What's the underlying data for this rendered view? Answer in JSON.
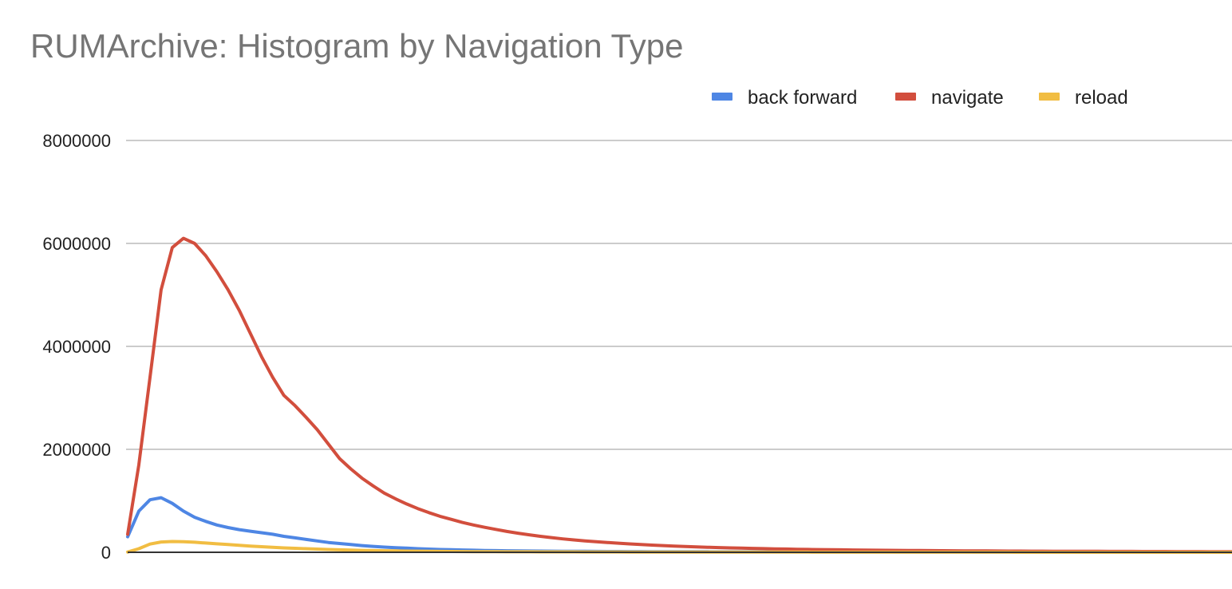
{
  "chart_data": {
    "type": "line",
    "title": "RUMArchive: Histogram by Navigation Type",
    "xlabel": "",
    "ylabel": "",
    "ylim": [
      0,
      8000000
    ],
    "yticks": [
      0,
      2000000,
      4000000,
      6000000,
      8000000
    ],
    "ytick_labels": [
      "0",
      "2000000",
      "4000000",
      "6000000",
      "8000000"
    ],
    "grid": true,
    "legend_position": "top-right",
    "colors": {
      "back forward": "#4e86e4",
      "navigate": "#d24e3d",
      "reload": "#f1bd42"
    },
    "x": [
      1,
      2,
      3,
      4,
      5,
      6,
      7,
      8,
      9,
      10,
      11,
      12,
      13,
      14,
      15,
      16,
      17,
      18,
      19,
      20,
      21,
      22,
      23,
      24,
      25,
      26,
      27,
      28,
      29,
      30,
      31,
      32,
      33,
      34,
      35,
      36,
      37,
      38,
      39,
      40,
      41,
      42,
      43,
      44,
      45,
      46,
      47,
      48,
      49,
      50,
      51,
      52,
      53,
      54,
      55,
      56,
      57,
      58,
      59,
      60,
      61,
      62,
      63,
      64,
      65,
      66,
      67,
      68,
      69,
      70,
      71,
      72,
      73,
      74,
      75,
      76,
      77,
      78,
      79,
      80,
      81,
      82,
      83,
      84,
      85,
      86,
      87,
      88,
      89,
      90,
      91,
      92,
      93,
      94,
      95,
      96,
      97,
      98,
      99,
      100
    ],
    "series": [
      {
        "name": "back forward",
        "values": [
          300000,
          800000,
          1020000,
          1060000,
          950000,
          800000,
          680000,
          600000,
          530000,
          480000,
          440000,
          410000,
          380000,
          350000,
          310000,
          280000,
          250000,
          220000,
          190000,
          170000,
          150000,
          130000,
          115000,
          100000,
          90000,
          80000,
          70000,
          62000,
          55000,
          50000,
          45000,
          40000,
          36000,
          33000,
          30000,
          27000,
          25000,
          23000,
          21000,
          20000,
          19000,
          18000,
          17000,
          16000,
          15000,
          14000,
          13500,
          13000,
          12500,
          12000,
          11500,
          11000,
          10500,
          10000,
          9800,
          9600,
          9400,
          9200,
          9000,
          8800,
          8600,
          8400,
          8200,
          8000,
          7800,
          7600,
          7400,
          7200,
          7000,
          6800,
          6600,
          6400,
          6200,
          6000,
          5800,
          5600,
          5400,
          5200,
          5000,
          4800,
          4600,
          4400,
          4200,
          4000,
          3800,
          3600,
          3400,
          3200,
          3000,
          2800,
          2600,
          2400,
          2200,
          2000,
          1800,
          1600,
          1400,
          1200,
          1000,
          800
        ]
      },
      {
        "name": "navigate",
        "values": [
          350000,
          1700000,
          3400000,
          5100000,
          5920000,
          6100000,
          6000000,
          5760000,
          5450000,
          5100000,
          4700000,
          4250000,
          3800000,
          3400000,
          3050000,
          2850000,
          2620000,
          2380000,
          2100000,
          1820000,
          1620000,
          1440000,
          1290000,
          1150000,
          1040000,
          940000,
          850000,
          770000,
          700000,
          640000,
          580000,
          530000,
          485000,
          445000,
          405000,
          370000,
          340000,
          310000,
          285000,
          260000,
          240000,
          222000,
          205000,
          190000,
          176000,
          163000,
          151000,
          140000,
          130000,
          121000,
          113000,
          105000,
          98000,
          92000,
          86000,
          81000,
          76000,
          71000,
          67000,
          63000,
          59000,
          56000,
          53000,
          50000,
          47500,
          45000,
          43000,
          41000,
          39000,
          37000,
          35500,
          34000,
          32500,
          31000,
          29500,
          28000,
          27000,
          26000,
          25000,
          24000,
          23000,
          22000,
          21000,
          20000,
          19500,
          19000,
          18500,
          18000,
          17500,
          17000,
          16500,
          16000,
          15500,
          15000,
          14500,
          14000,
          13500,
          13000,
          12500,
          12000
        ]
      },
      {
        "name": "reload",
        "values": [
          5000,
          70000,
          160000,
          200000,
          210000,
          205000,
          195000,
          180000,
          165000,
          150000,
          135000,
          120000,
          108000,
          96000,
          86000,
          78000,
          70000,
          62000,
          55000,
          48000,
          42000,
          37000,
          33000,
          29000,
          26000,
          23000,
          21000,
          19000,
          17000,
          15500,
          14000,
          13000,
          12000,
          11000,
          10000,
          9500,
          9000,
          8500,
          8000,
          7500,
          7000,
          6600,
          6200,
          5800,
          5500,
          5200,
          4900,
          4600,
          4400,
          4200,
          4000,
          3800,
          3600,
          3400,
          3200,
          3000,
          2900,
          2800,
          2700,
          2600,
          2500,
          2400,
          2300,
          2200,
          2100,
          2000,
          1900,
          1800,
          1700,
          1600,
          1500,
          1400,
          1300,
          1200,
          1100,
          1000,
          950,
          900,
          850,
          800,
          750,
          700,
          650,
          600,
          550,
          500,
          450,
          400,
          350,
          300,
          280,
          260,
          240,
          220,
          200,
          180,
          160,
          140,
          120,
          100
        ]
      }
    ]
  }
}
